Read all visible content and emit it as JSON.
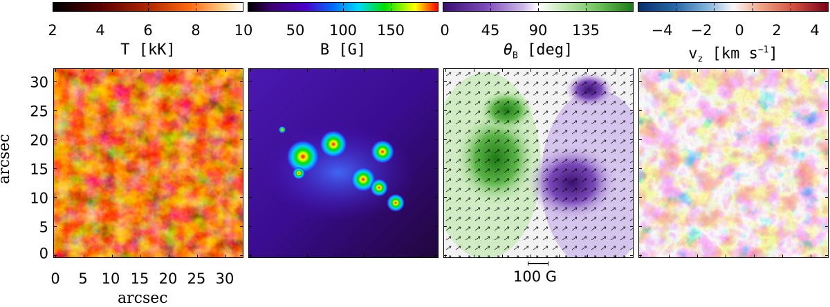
{
  "colorbars": [
    {
      "ticks": [
        "2",
        "4",
        "6",
        "8",
        "10"
      ],
      "label": "T [kK]"
    },
    {
      "ticks": [
        "50",
        "100",
        "150"
      ],
      "label": "B [G]"
    },
    {
      "ticks": [
        "0",
        "45",
        "90",
        "135"
      ],
      "label": "θB [deg]",
      "label_main": "θ",
      "label_sub": "B",
      "label_rest": " [deg]"
    },
    {
      "ticks": [
        "−4",
        "−2",
        "0",
        "2",
        "4"
      ],
      "label": "vz [km s−1]",
      "label_main": "v",
      "label_sub": "z",
      "label_rest": " [km s",
      "label_sup": "−1",
      "label_end": "]"
    }
  ],
  "axes": {
    "ylabel": "arcsec",
    "xlabel": "arcsec",
    "yticks": [
      "30",
      "25",
      "20",
      "15",
      "10",
      "5",
      "0"
    ],
    "xticks": [
      "0",
      "5",
      "10",
      "15",
      "20",
      "25",
      "30"
    ]
  },
  "vector_scale_label": "100 G",
  "colors": {
    "temperature_cmap": [
      "#000000",
      "#5a0000",
      "#b02800",
      "#ff6a10",
      "#ffcf8a",
      "#ffffff"
    ],
    "field_cmap": [
      "#000000",
      "#3b0070",
      "#4a00c8",
      "#0070ff",
      "#00d8ff",
      "#00e000",
      "#ffff00",
      "#ff0000"
    ],
    "inclination_cmap": [
      "#2a8a1e",
      "#8cd070",
      "#ffffff",
      "#b79ad8",
      "#4a1a8a"
    ],
    "velocity_cmap": [
      "#08306b",
      "#4a8cc6",
      "#f7f7f7",
      "#e08060",
      "#a01020"
    ]
  }
}
